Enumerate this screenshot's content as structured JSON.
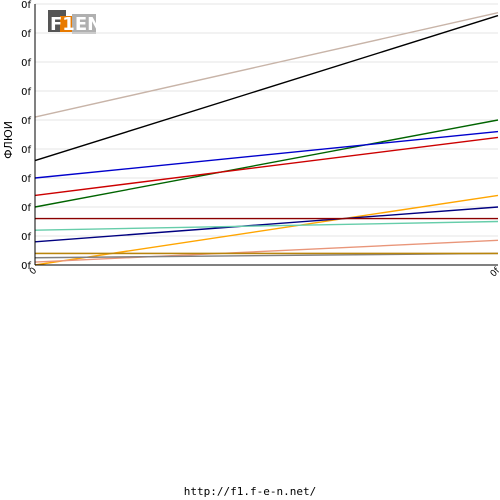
{
  "logo": {
    "text": "F1EN"
  },
  "footer": {
    "url": "http://f1.f-e-n.net/"
  },
  "chart_data": {
    "type": "line",
    "ylabel": "ФЛЮИ",
    "x_tick_labels": [
      "0",
      "0f"
    ],
    "y_tick_labels": [
      "0f",
      "0f",
      "0f",
      "0f",
      "0f",
      "0f",
      "0f",
      "0f",
      "0f",
      "0f"
    ],
    "x": [
      0,
      1
    ],
    "xlim": [
      0,
      1
    ],
    "ylim": [
      0,
      9
    ],
    "grid": true,
    "series": [
      {
        "color": "#c8b4a8",
        "values": [
          5.1,
          8.7
        ]
      },
      {
        "color": "#000000",
        "values": [
          3.6,
          8.6
        ]
      },
      {
        "color": "#006400",
        "values": [
          2.0,
          5.0
        ]
      },
      {
        "color": "#0000cc",
        "values": [
          3.0,
          4.6
        ]
      },
      {
        "color": "#cc0000",
        "values": [
          2.4,
          4.4
        ]
      },
      {
        "color": "#ffa500",
        "values": [
          0.0,
          2.4
        ]
      },
      {
        "color": "#000080",
        "values": [
          0.8,
          2.0
        ]
      },
      {
        "color": "#8b0000",
        "values": [
          1.6,
          1.6
        ]
      },
      {
        "color": "#66cdaa",
        "values": [
          1.2,
          1.5
        ]
      },
      {
        "color": "#e9967a",
        "values": [
          0.1,
          0.85
        ]
      },
      {
        "color": "#808080",
        "values": [
          0.25,
          0.4
        ]
      },
      {
        "color": "#cd853f",
        "values": [
          0.4,
          0.4
        ]
      },
      {
        "color": "#b8860b",
        "values": [
          0.4,
          0.4
        ]
      }
    ]
  }
}
